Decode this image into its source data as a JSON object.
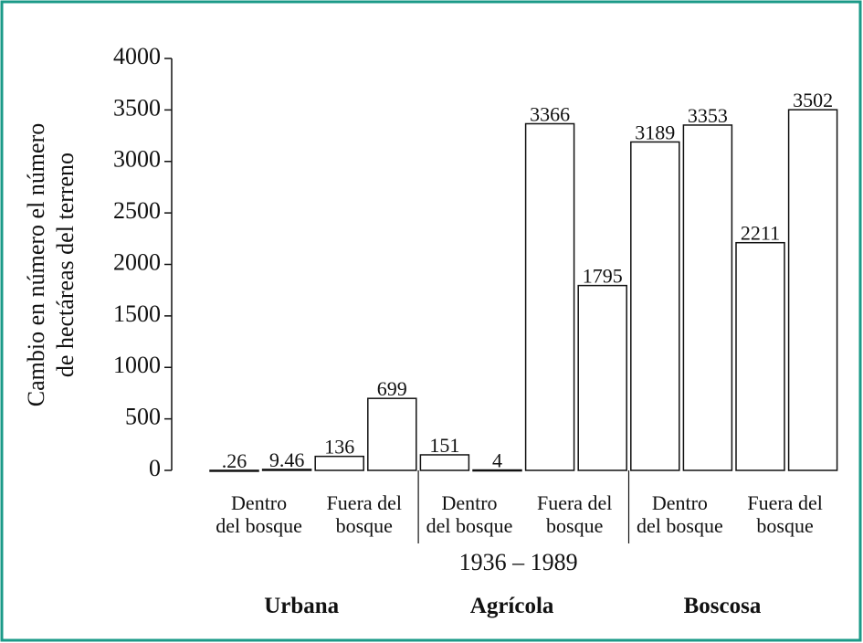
{
  "chart_data": {
    "type": "bar",
    "ylabel": [
      "Cambio en número el número",
      "de hectáreas del terreno"
    ],
    "values": [
      0.26,
      9.46,
      136,
      699,
      151,
      4,
      3366,
      1795,
      3189,
      3353,
      2211,
      3502
    ],
    "value_labels": [
      ".26",
      "9.46",
      "136",
      "699",
      "151",
      "4",
      "3366",
      "1795",
      "3189",
      "3353",
      "2211",
      "3502"
    ],
    "color": "#ffffff",
    "ylim": [
      0,
      4000
    ],
    "yticks": [
      0,
      500,
      1000,
      1500,
      2000,
      2500,
      3000,
      3500,
      4000
    ],
    "subcategories": [
      [
        "Dentro",
        "del bosque"
      ],
      [
        "Fuera del",
        "bosque"
      ],
      [
        "Dentro",
        "del bosque"
      ],
      [
        "Fuera del",
        "bosque"
      ],
      [
        "Dentro",
        "del bosque"
      ],
      [
        "Fuera del",
        "bosque"
      ]
    ],
    "xlabel": "1936 – 1989",
    "groups": [
      "Urbana",
      "Agrícola",
      "Boscosa"
    ]
  }
}
